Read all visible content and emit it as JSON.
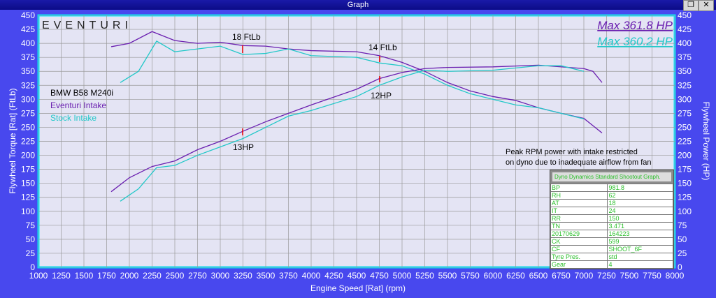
{
  "window": {
    "title": "Graph",
    "restore_icon": "restore-icon",
    "close_icon": "close-icon"
  },
  "logo": "EVENTURI",
  "legend": {
    "car": "BMW B58 M240i",
    "series1": "Eventuri Intake",
    "series2": "Stock Intake"
  },
  "max_labels": [
    "Max 361.8 HP",
    "Max 360.2 HP"
  ],
  "annotations": {
    "a1": "18 FtLb",
    "a2": "14 FtLb",
    "a3": "12HP",
    "a4": "13HP",
    "note1": "Peak RPM power with intake restricted",
    "note2": "on dyno due to inadequate airflow from fan"
  },
  "colors": {
    "eventuri": "#6a1fb0",
    "stock": "#22c8c8",
    "plot_bg": "#e4e4f4",
    "frame": "#4848ee",
    "border": "#00e5ff"
  },
  "info_box": {
    "title": "Dyno Dynamics Standard Shootout Graph.",
    "rows": [
      [
        "BP",
        "981.8"
      ],
      [
        "RH",
        "62"
      ],
      [
        "AT",
        "18"
      ],
      [
        "IT",
        "24"
      ],
      [
        "RR",
        "150"
      ],
      [
        "TN",
        "3.471"
      ],
      [
        "20170629",
        "164223"
      ],
      [
        "CK",
        "599"
      ],
      [
        "CF",
        "SHOOT_6F"
      ],
      [
        "Tyre Pres.",
        "std"
      ],
      [
        "Gear",
        "4"
      ]
    ]
  },
  "chart_data": {
    "type": "line",
    "xlabel": "Engine Speed [Rat] (rpm)",
    "ylabel": "Flywheel Torque [Rat] (FtLb)",
    "y2label": "Flywheel Power (HP)",
    "xlim": [
      1000,
      8000
    ],
    "ylim": [
      0,
      450
    ],
    "y2lim": [
      0,
      450
    ],
    "xticks": [
      1000,
      1250,
      1500,
      1750,
      2000,
      2250,
      2500,
      2750,
      3000,
      3250,
      3500,
      3750,
      4000,
      4250,
      4500,
      4750,
      5000,
      5250,
      5500,
      5750,
      6000,
      6250,
      6500,
      6750,
      7000,
      7250,
      7500,
      7750,
      8000
    ],
    "yticks": [
      0,
      25,
      50,
      75,
      100,
      125,
      150,
      175,
      200,
      225,
      250,
      275,
      300,
      325,
      350,
      375,
      400,
      425,
      450
    ],
    "grid": true,
    "series": [
      {
        "name": "Eventuri Intake",
        "kind": "torque",
        "x": [
          1800,
          2000,
          2250,
          2500,
          2750,
          3000,
          3250,
          3500,
          3750,
          4000,
          4500,
          4750,
          5000,
          5250,
          5500,
          5750,
          6000,
          6250,
          6500,
          6750,
          7000,
          7200
        ],
        "y": [
          394,
          400,
          421,
          405,
          400,
          402,
          396,
          395,
          390,
          387,
          385,
          378,
          366,
          350,
          330,
          315,
          305,
          298,
          285,
          275,
          266,
          240
        ]
      },
      {
        "name": "Stock Intake",
        "kind": "torque",
        "x": [
          1900,
          2100,
          2300,
          2500,
          2750,
          3000,
          3250,
          3500,
          3750,
          4000,
          4500,
          4750,
          5000,
          5250,
          5500,
          5750,
          6000,
          6250,
          6500,
          6750,
          7000
        ],
        "y": [
          330,
          350,
          404,
          385,
          390,
          395,
          380,
          382,
          390,
          378,
          375,
          365,
          360,
          345,
          325,
          310,
          300,
          290,
          285,
          275,
          265
        ]
      },
      {
        "name": "Eventuri Intake",
        "kind": "power",
        "x": [
          1800,
          2000,
          2250,
          2500,
          2750,
          3000,
          3250,
          3500,
          3750,
          4000,
          4500,
          4750,
          5000,
          5250,
          5500,
          6000,
          6500,
          7000,
          7100,
          7200
        ],
        "y": [
          135,
          160,
          180,
          190,
          210,
          225,
          243,
          260,
          275,
          290,
          318,
          337,
          348,
          355,
          357,
          358,
          361,
          355,
          350,
          330
        ]
      },
      {
        "name": "Stock Intake",
        "kind": "power",
        "x": [
          1900,
          2100,
          2300,
          2500,
          2750,
          3000,
          3250,
          3500,
          3750,
          4000,
          4500,
          4750,
          5000,
          5250,
          5500,
          6000,
          6500,
          6750,
          7000
        ],
        "y": [
          118,
          140,
          178,
          182,
          200,
          215,
          230,
          250,
          270,
          280,
          305,
          325,
          340,
          352,
          350,
          352,
          360,
          360,
          350
        ]
      }
    ]
  }
}
